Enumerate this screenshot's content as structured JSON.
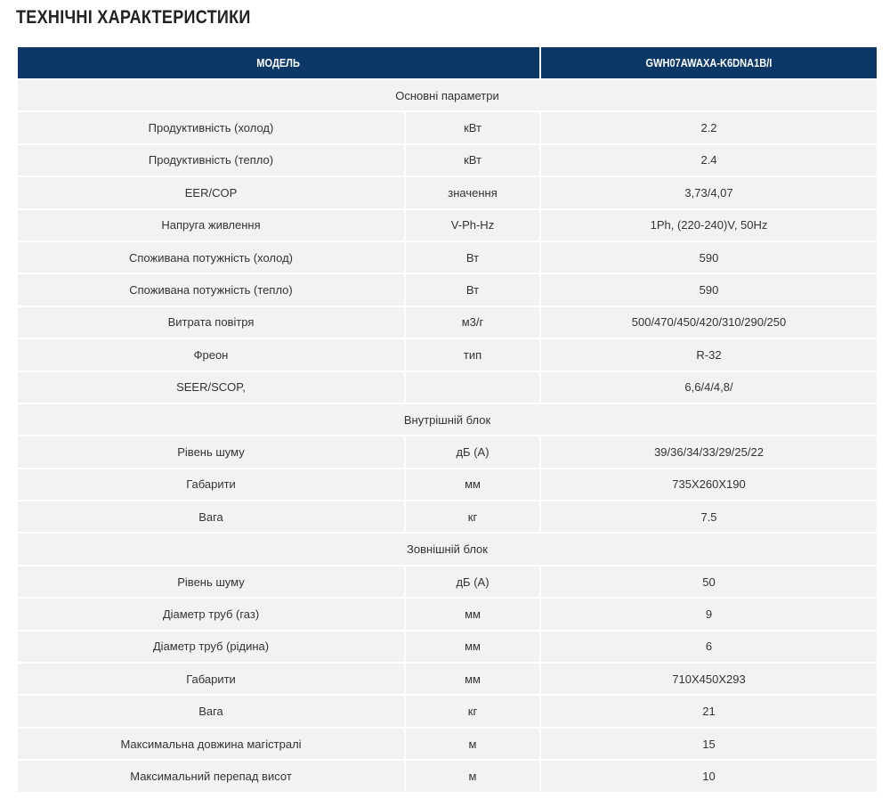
{
  "header": {
    "title": "ТЕХНІЧНІ ХАРАКТЕРИСТИКИ"
  },
  "table": {
    "columns": [
      "МОДЕЛЬ",
      "GWH07AWAXA-K6DNA1B/I"
    ],
    "rows": [
      {
        "section": "Основні параметри"
      },
      {
        "label": "Продуктивність (холод)",
        "unit": "кВт",
        "value": "2.2"
      },
      {
        "label": "Продуктивність (тепло)",
        "unit": "кВт",
        "value": "2.4"
      },
      {
        "label": "EER/COP",
        "unit": "значення",
        "value": "3,73/4,07"
      },
      {
        "label": "Напруга живлення",
        "unit": "V-Ph-Hz",
        "value": "1Ph, (220-240)V, 50Hz"
      },
      {
        "label": "Споживана потужність (холод)",
        "unit": "Вт",
        "value": "590"
      },
      {
        "label": "Споживана потужність (тепло)",
        "unit": "Вт",
        "value": "590"
      },
      {
        "label": "Витрата повітря",
        "unit": "м3/г",
        "value": "500/470/450/420/310/290/250"
      },
      {
        "label": "Фреон",
        "unit": "тип",
        "value": "R-32"
      },
      {
        "label": "SEER/SCOP,",
        "value": "6,6/4/4,8/"
      },
      {
        "section": "Внутрішній блок"
      },
      {
        "label": "Рівень шуму",
        "unit": "дБ (А)",
        "value": "39/36/34/33/29/25/22"
      },
      {
        "label": "Габарити",
        "unit": "мм",
        "value": "735Х260Х190"
      },
      {
        "label": "Вага",
        "unit": "кг",
        "value": "7.5"
      },
      {
        "section": "Зовнішній блок"
      },
      {
        "label": "Рівень шуму",
        "unit": "дБ (А)",
        "value": "50"
      },
      {
        "label": "Діаметр труб (газ)",
        "unit": "мм",
        "value": "9"
      },
      {
        "label": "Діаметр труб (рідина)",
        "unit": "мм",
        "value": "6"
      },
      {
        "label": "Габарити",
        "unit": "мм",
        "value": "710Х450Х293"
      },
      {
        "label": "Вага",
        "unit": "кг",
        "value": "21"
      },
      {
        "label": "Максимальна довжина магістралі",
        "unit": "м",
        "value": "15"
      },
      {
        "label": "Максимальний перепад висот",
        "unit": "м",
        "value": "10"
      }
    ]
  }
}
